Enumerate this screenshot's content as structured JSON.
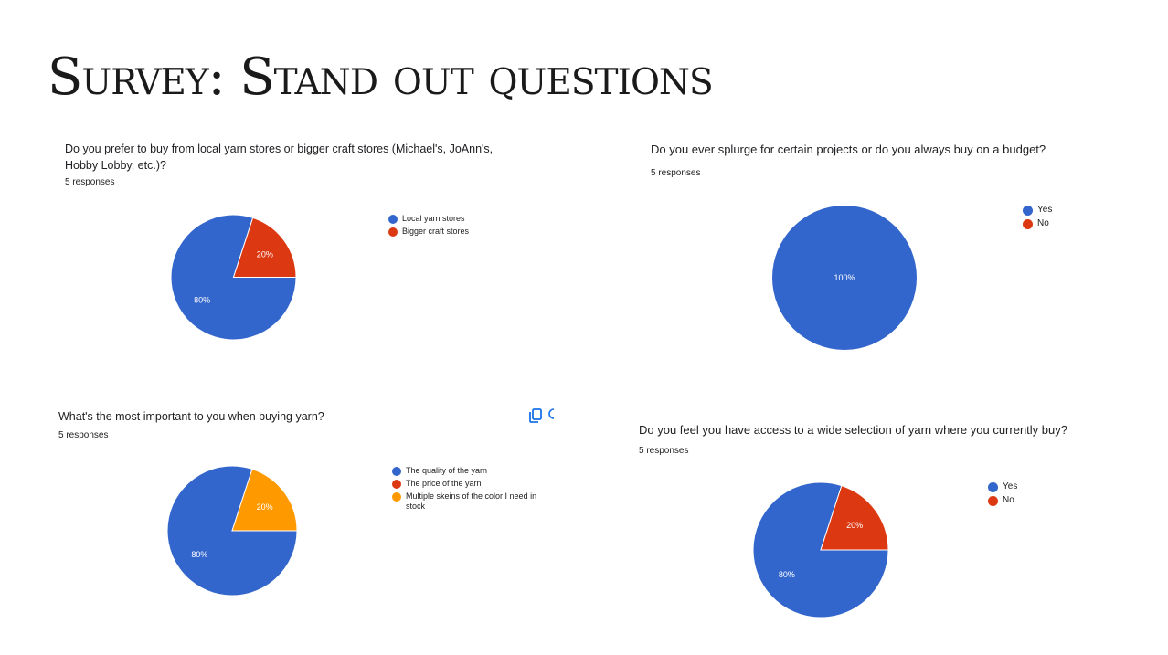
{
  "slide": {
    "title": "Survey: Stand out questions"
  },
  "panels": [
    {
      "question": "Do you prefer to buy from local yarn stores or bigger craft stores (Michael's, JoAnn's, Hobby Lobby, etc.)?",
      "responses": "5 responses"
    },
    {
      "question": "Do you ever splurge for certain projects or do you always buy on a budget?",
      "responses": "5 responses"
    },
    {
      "question": "What's the most important to you when buying yarn?",
      "responses": "5 responses"
    },
    {
      "question": "Do you feel you have access to a wide selection of yarn where you currently buy?",
      "responses": "5 responses"
    }
  ],
  "icons": {
    "copy": "copy-icon",
    "more": "more-icon"
  },
  "colors": {
    "blue": "#3366cc",
    "red": "#dc3912",
    "orange": "#ff9900"
  },
  "chart_data": [
    {
      "type": "pie",
      "title": "Do you prefer to buy from local yarn stores or bigger craft stores (Michael's, JoAnn's, Hobby Lobby, etc.)?",
      "categories": [
        "Local yarn stores",
        "Bigger craft stores"
      ],
      "values": [
        80,
        20
      ],
      "labels": [
        "80%",
        "20%"
      ],
      "colors": [
        "#3366cc",
        "#dc3912"
      ],
      "legend": "right"
    },
    {
      "type": "pie",
      "title": "Do you ever splurge for certain projects or do you always buy on a budget?",
      "categories": [
        "Yes",
        "No"
      ],
      "values": [
        100,
        0
      ],
      "labels": [
        "100%",
        ""
      ],
      "colors": [
        "#3366cc",
        "#dc3912"
      ],
      "legend": "right"
    },
    {
      "type": "pie",
      "title": "What's the most important to you when buying yarn?",
      "categories": [
        "The quality of the yarn",
        "The price of the yarn",
        "Multiple skeins of the color I need in stock"
      ],
      "values": [
        80,
        0,
        20
      ],
      "labels": [
        "80%",
        "",
        "20%"
      ],
      "colors": [
        "#3366cc",
        "#dc3912",
        "#ff9900"
      ],
      "legend": "right"
    },
    {
      "type": "pie",
      "title": "Do you feel you have access to a wide selection of yarn where you currently buy?",
      "categories": [
        "Yes",
        "No"
      ],
      "values": [
        80,
        20
      ],
      "labels": [
        "80%",
        "20%"
      ],
      "colors": [
        "#3366cc",
        "#dc3912"
      ],
      "legend": "right"
    }
  ]
}
